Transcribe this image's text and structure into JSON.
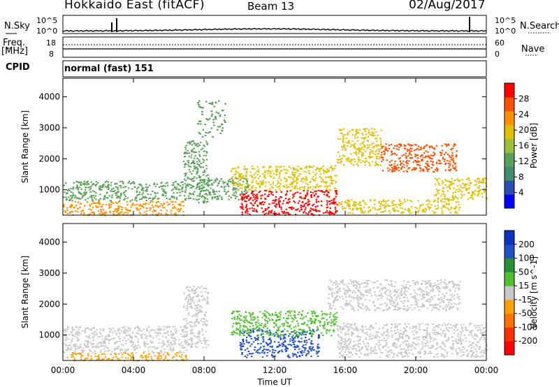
{
  "header": {
    "title": "Hokkaido East (fitACF)",
    "beam": "Beam 13",
    "date": "02/Aug/2017"
  },
  "top_panels": {
    "nsky_label": "N.Sky",
    "nsky_ticks": [
      "10^5",
      "10^0"
    ],
    "nsearch_label": "N.Search",
    "nsearch_ticks": [
      "10^5",
      "10^0"
    ],
    "freq_label": "Freq.",
    "freq_unit": "[MHz]",
    "freq_ticks": [
      "18",
      "8"
    ],
    "nave_label": "Nave",
    "nave_ticks": [
      "60",
      "0"
    ],
    "cpid_label": "CPID",
    "cpid_text": "normal (fast) 151"
  },
  "colors": {
    "power_scale": [
      "#0000ff",
      "#2a4db0",
      "#3f8f70",
      "#5aa05a",
      "#9bc040",
      "#e0c000",
      "#ff9000",
      "#ff5000",
      "#ff0000"
    ],
    "velocity_scale": [
      "#1030c0",
      "#2050c0",
      "#2a8f3a",
      "#50c030",
      "#c8c8c8",
      "#ffa000",
      "#ff7000",
      "#ff3000",
      "#ff0000"
    ]
  },
  "chart_data": [
    {
      "type": "heatmap",
      "title": "",
      "xlabel": "",
      "ylabel": "Slant Range [km]",
      "x_ticks": [
        "00:00",
        "04:00",
        "08:00",
        "12:00",
        "16:00",
        "20:00",
        "00:00"
      ],
      "y_ticks": [
        1000,
        2000,
        3000,
        4000
      ],
      "xlim": [
        0,
        24
      ],
      "ylim": [
        180,
        4600
      ],
      "colorbar_label": "Power [dB]",
      "colorbar_ticks": [
        4,
        8,
        12,
        16,
        20,
        24,
        28
      ],
      "colorbar_range": [
        0,
        32
      ],
      "regions": [
        {
          "t": [
            0.0,
            6.8
          ],
          "r": [
            190,
            650
          ],
          "v": 24
        },
        {
          "t": [
            0.0,
            6.8
          ],
          "r": [
            650,
            1300
          ],
          "v": 14
        },
        {
          "t": [
            6.8,
            8.2
          ],
          "r": [
            600,
            2600
          ],
          "v": 12
        },
        {
          "t": [
            7.6,
            9.2
          ],
          "r": [
            2700,
            3900
          ],
          "v": 12
        },
        {
          "t": [
            7.5,
            10.5
          ],
          "r": [
            700,
            1400
          ],
          "v": 13
        },
        {
          "t": [
            10.0,
            15.5
          ],
          "r": [
            190,
            1000
          ],
          "v": 29
        },
        {
          "t": [
            9.5,
            15.5
          ],
          "r": [
            1000,
            1800
          ],
          "v": 18
        },
        {
          "t": [
            15.5,
            22.5
          ],
          "r": [
            250,
            700
          ],
          "v": 20
        },
        {
          "t": [
            15.5,
            18.0
          ],
          "r": [
            1800,
            3000
          ],
          "v": 18
        },
        {
          "t": [
            18.0,
            22.3
          ],
          "r": [
            1600,
            2500
          ],
          "v": 27
        },
        {
          "t": [
            21.0,
            24.0
          ],
          "r": [
            700,
            1400
          ],
          "v": 20
        }
      ]
    },
    {
      "type": "heatmap",
      "title": "",
      "xlabel": "Time UT",
      "ylabel": "Slant Range [km]",
      "x_ticks": [
        "00:00",
        "04:00",
        "08:00",
        "12:00",
        "16:00",
        "20:00",
        "00:00"
      ],
      "y_ticks": [
        1000,
        2000,
        3000,
        4000
      ],
      "xlim": [
        0,
        24
      ],
      "ylim": [
        180,
        4600
      ],
      "colorbar_label": "Velocity [m s^-1]",
      "colorbar_ticks": [
        "-200",
        "-100",
        "-50",
        "-15",
        "15",
        "50",
        "100",
        "200"
      ],
      "regions": [
        {
          "t": [
            0.0,
            7.0
          ],
          "r": [
            190,
            450
          ],
          "v": -50
        },
        {
          "t": [
            0.0,
            7.0
          ],
          "r": [
            450,
            1300
          ],
          "v": 0
        },
        {
          "t": [
            6.8,
            8.2
          ],
          "r": [
            600,
            2600
          ],
          "v": 0
        },
        {
          "t": [
            10.0,
            14.5
          ],
          "r": [
            300,
            1200
          ],
          "v": 150
        },
        {
          "t": [
            9.5,
            15.5
          ],
          "r": [
            1000,
            1800
          ],
          "v": 30
        },
        {
          "t": [
            15.0,
            22.5
          ],
          "r": [
            1800,
            2800
          ],
          "v": 0
        },
        {
          "t": [
            15.5,
            24.0
          ],
          "r": [
            300,
            1400
          ],
          "v": 0
        }
      ]
    }
  ]
}
